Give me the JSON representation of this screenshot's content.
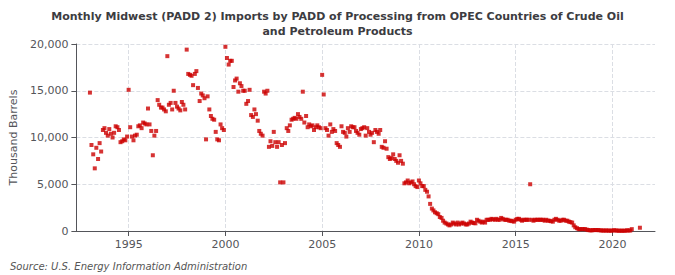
{
  "chart_data": {
    "type": "scatter",
    "title": "Monthly Midwest (PADD 2) Imports by PADD of Processing from OPEC Countries of Crude Oil\nand Petroleum Products",
    "ylabel": "Thousand Barrels",
    "annotations": [
      "Source: U.S. Energy Information Administration"
    ],
    "color": "#CC0000",
    "marker": "square",
    "grid": true,
    "xlim": [
      1992.3,
      2022.2
    ],
    "xticks": [
      1995,
      2000,
      2005,
      2010,
      2015,
      2020
    ],
    "ylim": [
      0,
      20000
    ],
    "yticks": [
      0,
      {
        "value": 5000,
        "label": "5,000"
      },
      {
        "value": 10000,
        "label": "10,000"
      },
      {
        "value": 15000,
        "label": "15,000"
      },
      {
        "value": 20000,
        "label": "20,000"
      }
    ],
    "x": [
      1993.0,
      1993.08,
      1993.17,
      1993.25,
      1993.33,
      1993.42,
      1993.5,
      1993.58,
      1993.67,
      1993.75,
      1993.83,
      1993.92,
      1994.0,
      1994.08,
      1994.17,
      1994.25,
      1994.33,
      1994.42,
      1994.5,
      1994.58,
      1994.67,
      1994.75,
      1994.83,
      1994.92,
      1995.0,
      1995.08,
      1995.17,
      1995.25,
      1995.33,
      1995.42,
      1995.5,
      1995.58,
      1995.67,
      1995.75,
      1995.83,
      1995.92,
      1996.0,
      1996.08,
      1996.17,
      1996.25,
      1996.33,
      1996.42,
      1996.5,
      1996.58,
      1996.67,
      1996.75,
      1996.83,
      1996.92,
      1997.0,
      1997.08,
      1997.17,
      1997.25,
      1997.33,
      1997.42,
      1997.5,
      1997.58,
      1997.67,
      1997.75,
      1997.83,
      1997.92,
      1998.0,
      1998.08,
      1998.17,
      1998.25,
      1998.33,
      1998.42,
      1998.5,
      1998.58,
      1998.67,
      1998.75,
      1998.83,
      1998.92,
      1999.0,
      1999.08,
      1999.17,
      1999.25,
      1999.33,
      1999.42,
      1999.5,
      1999.58,
      1999.67,
      1999.75,
      1999.83,
      1999.92,
      2000.0,
      2000.08,
      2000.17,
      2000.25,
      2000.33,
      2000.42,
      2000.5,
      2000.58,
      2000.67,
      2000.75,
      2000.83,
      2000.92,
      2001.0,
      2001.08,
      2001.17,
      2001.25,
      2001.33,
      2001.42,
      2001.5,
      2001.58,
      2001.67,
      2001.75,
      2001.83,
      2001.92,
      2002.0,
      2002.08,
      2002.17,
      2002.25,
      2002.33,
      2002.42,
      2002.5,
      2002.58,
      2002.67,
      2002.75,
      2002.83,
      2002.92,
      2003.0,
      2003.08,
      2003.17,
      2003.25,
      2003.33,
      2003.42,
      2003.5,
      2003.58,
      2003.67,
      2003.75,
      2003.83,
      2003.92,
      2004.0,
      2004.08,
      2004.17,
      2004.25,
      2004.33,
      2004.42,
      2004.5,
      2004.58,
      2004.67,
      2004.75,
      2004.83,
      2004.92,
      2005.0,
      2005.08,
      2005.17,
      2005.25,
      2005.33,
      2005.42,
      2005.5,
      2005.58,
      2005.67,
      2005.75,
      2005.83,
      2005.92,
      2006.0,
      2006.08,
      2006.17,
      2006.25,
      2006.33,
      2006.42,
      2006.5,
      2006.58,
      2006.67,
      2006.75,
      2006.83,
      2006.92,
      2007.0,
      2007.08,
      2007.17,
      2007.25,
      2007.33,
      2007.42,
      2007.5,
      2007.58,
      2007.67,
      2007.75,
      2007.83,
      2007.92,
      2008.0,
      2008.08,
      2008.17,
      2008.25,
      2008.33,
      2008.42,
      2008.5,
      2008.58,
      2008.67,
      2008.75,
      2008.83,
      2008.92,
      2009.0,
      2009.08,
      2009.17,
      2009.25,
      2009.33,
      2009.42,
      2009.5,
      2009.58,
      2009.67,
      2009.75,
      2009.83,
      2009.92,
      2010.0,
      2010.08,
      2010.17,
      2010.25,
      2010.33,
      2010.42,
      2010.5,
      2010.58,
      2010.67,
      2010.75,
      2010.83,
      2010.92,
      2011.0,
      2011.08,
      2011.17,
      2011.25,
      2011.33,
      2011.42,
      2011.5,
      2011.58,
      2011.67,
      2011.75,
      2011.83,
      2011.92,
      2012.0,
      2012.08,
      2012.17,
      2012.25,
      2012.33,
      2012.42,
      2012.5,
      2012.58,
      2012.67,
      2012.75,
      2012.83,
      2012.92,
      2013.0,
      2013.08,
      2013.17,
      2013.25,
      2013.33,
      2013.42,
      2013.5,
      2013.58,
      2013.67,
      2013.75,
      2013.83,
      2013.92,
      2014.0,
      2014.08,
      2014.17,
      2014.25,
      2014.33,
      2014.42,
      2014.5,
      2014.58,
      2014.67,
      2014.75,
      2014.83,
      2014.92,
      2015.0,
      2015.08,
      2015.17,
      2015.25,
      2015.33,
      2015.42,
      2015.5,
      2015.58,
      2015.67,
      2015.75,
      2015.83,
      2015.92,
      2016.0,
      2016.08,
      2016.17,
      2016.25,
      2016.33,
      2016.42,
      2016.5,
      2016.58,
      2016.67,
      2016.75,
      2016.83,
      2016.92,
      2017.0,
      2017.08,
      2017.17,
      2017.25,
      2017.33,
      2017.42,
      2017.5,
      2017.58,
      2017.67,
      2017.75,
      2017.83,
      2017.92,
      2018.0,
      2018.08,
      2018.17,
      2018.25,
      2018.33,
      2018.42,
      2018.5,
      2018.58,
      2018.67,
      2018.75,
      2018.83,
      2018.92,
      2019.0,
      2019.08,
      2019.17,
      2019.25,
      2019.33,
      2019.42,
      2019.5,
      2019.58,
      2019.67,
      2019.75,
      2019.83,
      2019.92,
      2020.0,
      2020.08,
      2020.17,
      2020.25,
      2020.33,
      2020.42,
      2020.5,
      2020.58,
      2020.67,
      2020.75,
      2020.83,
      2020.92,
      2021.0,
      2021.42
    ],
    "values": [
      14800,
      9200,
      8200,
      6700,
      8900,
      7700,
      9400,
      8500,
      10800,
      11000,
      10500,
      10200,
      10900,
      10400,
      10000,
      10500,
      11200,
      11100,
      10800,
      9500,
      9600,
      9800,
      9700,
      10100,
      15100,
      11100,
      10100,
      9700,
      10200,
      10300,
      11200,
      11300,
      11000,
      11600,
      11500,
      11400,
      13100,
      11400,
      10700,
      8100,
      10200,
      10700,
      14000,
      13500,
      13200,
      13200,
      13000,
      12800,
      18700,
      13500,
      13700,
      13000,
      15000,
      13700,
      13300,
      13100,
      12900,
      13800,
      13500,
      13000,
      19400,
      16800,
      16700,
      16600,
      15600,
      16800,
      17100,
      15300,
      13900,
      14700,
      14500,
      14200,
      9800,
      14400,
      13000,
      12300,
      12000,
      11900,
      10600,
      9800,
      9700,
      11400,
      11000,
      10800,
      19700,
      18500,
      17800,
      18200,
      18200,
      15400,
      16100,
      16300,
      14900,
      15800,
      15500,
      15000,
      15000,
      13600,
      13900,
      15100,
      12400,
      12200,
      13000,
      12500,
      11800,
      10700,
      10400,
      10200,
      14900,
      14700,
      15000,
      9000,
      9600,
      9100,
      10600,
      9500,
      9000,
      9500,
      5200,
      9200,
      5200,
      9400,
      11000,
      10700,
      11300,
      11900,
      12000,
      12100,
      12000,
      12500,
      12200,
      12000,
      14900,
      11600,
      12300,
      11100,
      11400,
      11200,
      11300,
      10800,
      11100,
      11300,
      11100,
      11000,
      16700,
      14600,
      11000,
      10800,
      10200,
      11400,
      10600,
      10900,
      10700,
      9400,
      9200,
      9000,
      11200,
      10600,
      10500,
      10100,
      11000,
      10600,
      11200,
      11100,
      11100,
      10700,
      10500,
      10300,
      10900,
      11000,
      11100,
      10200,
      11000,
      10600,
      10300,
      10500,
      9500,
      10800,
      10600,
      10400,
      10800,
      9000,
      8900,
      9600,
      8800,
      7900,
      7700,
      7800,
      8200,
      7700,
      7500,
      7300,
      8100,
      7500,
      7200,
      5100,
      5200,
      5400,
      5100,
      5200,
      5300,
      5000,
      4800,
      4700,
      5400,
      5100,
      4800,
      4800,
      4400,
      4200,
      3700,
      2900,
      2400,
      2200,
      2000,
      1900,
      1800,
      1500,
      1400,
      1100,
      900,
      800,
      700,
      600,
      700,
      900,
      800,
      700,
      900,
      700,
      800,
      900,
      800,
      700,
      700,
      800,
      1000,
      900,
      850,
      820,
      1200,
      1100,
      1000,
      900,
      1000,
      900,
      1200,
      1200,
      1200,
      1300,
      1250,
      1200,
      1300,
      1200,
      1200,
      1400,
      1300,
      1200,
      1200,
      1200,
      1100,
      1100,
      1050,
      1000,
      1200,
      1300,
      1300,
      1200,
      1100,
      1200,
      1200,
      1200,
      1200,
      5000,
      1200,
      1100,
      1200,
      1200,
      1200,
      1200,
      1200,
      1200,
      1100,
      1200,
      1100,
      1100,
      1050,
      1000,
      1200,
      1300,
      1200,
      1100,
      1100,
      1200,
      1200,
      1100,
      1100,
      1000,
      950,
      900,
      600,
      400,
      300,
      200,
      200,
      200,
      200,
      200,
      150,
      100,
      80,
      60,
      100,
      100,
      100,
      100,
      80,
      60,
      50,
      50,
      50,
      50,
      40,
      30,
      50,
      80,
      60,
      40,
      30,
      30,
      30,
      30,
      30,
      70,
      60,
      50,
      200,
      350
    ]
  }
}
